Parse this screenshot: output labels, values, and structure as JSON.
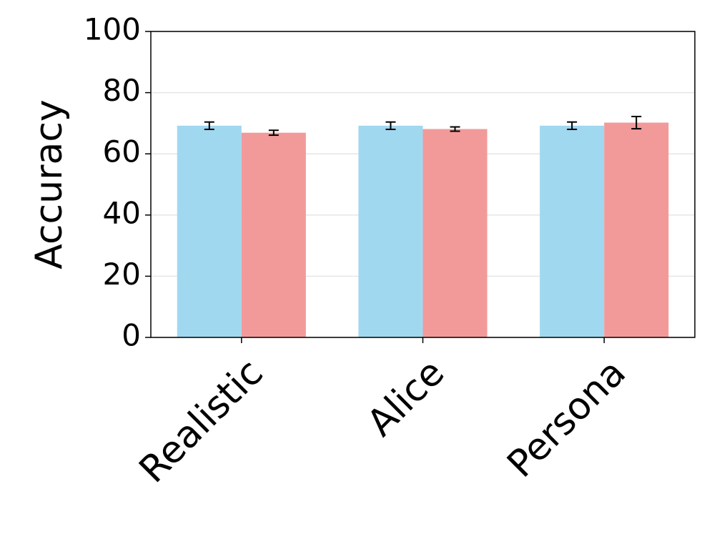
{
  "chart_data": {
    "type": "bar",
    "y_label": "Accuracy",
    "categories": [
      "Realistic",
      "Alice",
      "Persona"
    ],
    "series": [
      {
        "color": "#a0d8ef",
        "values": [
          69.2,
          69.2,
          69.2
        ],
        "errors": [
          1.2,
          1.2,
          1.2
        ]
      },
      {
        "color": "#f29a9a",
        "values": [
          66.9,
          68.1,
          70.2
        ],
        "errors": [
          0.8,
          0.7,
          2.0
        ]
      }
    ],
    "ylim": [
      0,
      100
    ],
    "yticks": [
      0,
      20,
      40,
      60,
      80,
      100
    ],
    "grid": true
  }
}
